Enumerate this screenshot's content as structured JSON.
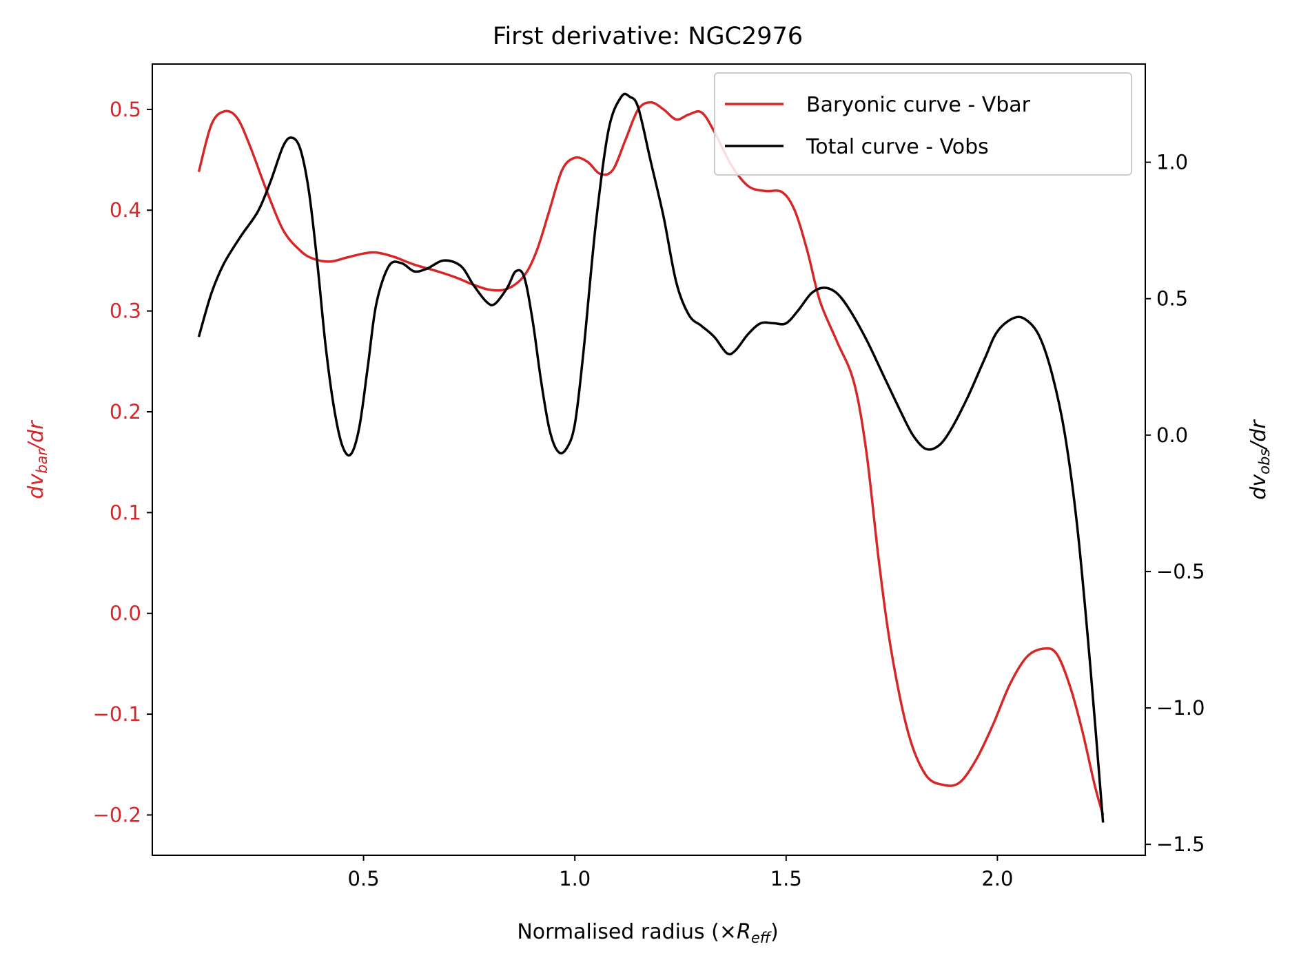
{
  "chart_data": {
    "type": "line",
    "title": "First derivative: NGC2976",
    "x_axis": {
      "label": "Normalised radius (×",
      "label_var": "R",
      "label_sub": "eff",
      "label_close": ")",
      "range": [
        0.0,
        2.35
      ],
      "ticks": [
        "0.5",
        "1.0",
        "1.5",
        "2.0"
      ]
    },
    "y_left": {
      "label_pre": "dv",
      "label_sub": "bar",
      "label_post": "/dr",
      "color": "#d62728",
      "range": [
        -0.24,
        0.545
      ],
      "ticks": [
        "−0.2",
        "−0.1",
        "0.0",
        "0.1",
        "0.2",
        "0.3",
        "0.4",
        "0.5"
      ]
    },
    "y_right": {
      "label_pre": "dv",
      "label_sub": "obs",
      "label_post": "/dr",
      "color": "#000000",
      "range": [
        -1.54,
        1.36
      ],
      "ticks": [
        "−1.5",
        "−1.0",
        "−0.5",
        "0.0",
        "0.5",
        "1.0"
      ]
    },
    "legend": {
      "position": "top-right",
      "entries": [
        "Baryonic curve - Vbar",
        "Total curve - Vobs"
      ]
    },
    "grid": false,
    "series": [
      {
        "name": "Baryonic curve - Vbar",
        "axis": "left",
        "color": "#d62728",
        "points": [
          [
            0.11,
            0.438
          ],
          [
            0.14,
            0.485
          ],
          [
            0.17,
            0.498
          ],
          [
            0.2,
            0.492
          ],
          [
            0.23,
            0.465
          ],
          [
            0.27,
            0.42
          ],
          [
            0.31,
            0.38
          ],
          [
            0.35,
            0.36
          ],
          [
            0.38,
            0.352
          ],
          [
            0.42,
            0.349
          ],
          [
            0.46,
            0.353
          ],
          [
            0.5,
            0.357
          ],
          [
            0.53,
            0.358
          ],
          [
            0.57,
            0.354
          ],
          [
            0.62,
            0.346
          ],
          [
            0.67,
            0.34
          ],
          [
            0.72,
            0.333
          ],
          [
            0.76,
            0.326
          ],
          [
            0.8,
            0.321
          ],
          [
            0.84,
            0.322
          ],
          [
            0.88,
            0.335
          ],
          [
            0.91,
            0.36
          ],
          [
            0.94,
            0.4
          ],
          [
            0.97,
            0.44
          ],
          [
            1.0,
            0.452
          ],
          [
            1.03,
            0.448
          ],
          [
            1.06,
            0.436
          ],
          [
            1.09,
            0.44
          ],
          [
            1.12,
            0.47
          ],
          [
            1.15,
            0.5
          ],
          [
            1.18,
            0.507
          ],
          [
            1.21,
            0.5
          ],
          [
            1.24,
            0.49
          ],
          [
            1.27,
            0.495
          ],
          [
            1.3,
            0.497
          ],
          [
            1.33,
            0.478
          ],
          [
            1.37,
            0.445
          ],
          [
            1.41,
            0.424
          ],
          [
            1.45,
            0.419
          ],
          [
            1.49,
            0.418
          ],
          [
            1.52,
            0.4
          ],
          [
            1.55,
            0.36
          ],
          [
            1.58,
            0.31
          ],
          [
            1.62,
            0.27
          ],
          [
            1.66,
            0.23
          ],
          [
            1.69,
            0.16
          ],
          [
            1.72,
            0.05
          ],
          [
            1.75,
            -0.04
          ],
          [
            1.79,
            -0.12
          ],
          [
            1.83,
            -0.16
          ],
          [
            1.87,
            -0.17
          ],
          [
            1.91,
            -0.168
          ],
          [
            1.95,
            -0.145
          ],
          [
            1.99,
            -0.11
          ],
          [
            2.03,
            -0.07
          ],
          [
            2.07,
            -0.043
          ],
          [
            2.11,
            -0.035
          ],
          [
            2.14,
            -0.04
          ],
          [
            2.17,
            -0.07
          ],
          [
            2.2,
            -0.115
          ],
          [
            2.23,
            -0.17
          ],
          [
            2.25,
            -0.2
          ]
        ]
      },
      {
        "name": "Total curve - Vobs",
        "axis": "right",
        "color": "#000000",
        "points": [
          [
            0.11,
            0.36
          ],
          [
            0.14,
            0.52
          ],
          [
            0.17,
            0.63
          ],
          [
            0.21,
            0.73
          ],
          [
            0.25,
            0.82
          ],
          [
            0.28,
            0.93
          ],
          [
            0.31,
            1.06
          ],
          [
            0.33,
            1.09
          ],
          [
            0.35,
            1.05
          ],
          [
            0.37,
            0.9
          ],
          [
            0.39,
            0.64
          ],
          [
            0.41,
            0.33
          ],
          [
            0.43,
            0.1
          ],
          [
            0.45,
            -0.04
          ],
          [
            0.47,
            -0.07
          ],
          [
            0.49,
            0.03
          ],
          [
            0.51,
            0.25
          ],
          [
            0.53,
            0.48
          ],
          [
            0.56,
            0.62
          ],
          [
            0.59,
            0.63
          ],
          [
            0.62,
            0.6
          ],
          [
            0.65,
            0.61
          ],
          [
            0.69,
            0.64
          ],
          [
            0.73,
            0.62
          ],
          [
            0.76,
            0.55
          ],
          [
            0.79,
            0.49
          ],
          [
            0.81,
            0.48
          ],
          [
            0.84,
            0.54
          ],
          [
            0.86,
            0.6
          ],
          [
            0.88,
            0.58
          ],
          [
            0.9,
            0.42
          ],
          [
            0.92,
            0.2
          ],
          [
            0.94,
            0.02
          ],
          [
            0.96,
            -0.06
          ],
          [
            0.98,
            -0.05
          ],
          [
            1.0,
            0.04
          ],
          [
            1.02,
            0.3
          ],
          [
            1.05,
            0.78
          ],
          [
            1.08,
            1.12
          ],
          [
            1.11,
            1.24
          ],
          [
            1.13,
            1.24
          ],
          [
            1.15,
            1.2
          ],
          [
            1.18,
            1.0
          ],
          [
            1.21,
            0.8
          ],
          [
            1.24,
            0.56
          ],
          [
            1.27,
            0.44
          ],
          [
            1.3,
            0.4
          ],
          [
            1.33,
            0.36
          ],
          [
            1.36,
            0.3
          ],
          [
            1.38,
            0.31
          ],
          [
            1.41,
            0.37
          ],
          [
            1.44,
            0.41
          ],
          [
            1.47,
            0.41
          ],
          [
            1.5,
            0.41
          ],
          [
            1.53,
            0.46
          ],
          [
            1.56,
            0.52
          ],
          [
            1.59,
            0.54
          ],
          [
            1.62,
            0.52
          ],
          [
            1.65,
            0.46
          ],
          [
            1.69,
            0.35
          ],
          [
            1.73,
            0.22
          ],
          [
            1.77,
            0.09
          ],
          [
            1.8,
            0.0
          ],
          [
            1.83,
            -0.05
          ],
          [
            1.86,
            -0.04
          ],
          [
            1.89,
            0.02
          ],
          [
            1.93,
            0.14
          ],
          [
            1.97,
            0.28
          ],
          [
            2.0,
            0.38
          ],
          [
            2.04,
            0.43
          ],
          [
            2.07,
            0.42
          ],
          [
            2.1,
            0.36
          ],
          [
            2.13,
            0.22
          ],
          [
            2.16,
            0.0
          ],
          [
            2.19,
            -0.35
          ],
          [
            2.22,
            -0.85
          ],
          [
            2.25,
            -1.42
          ]
        ]
      }
    ]
  }
}
